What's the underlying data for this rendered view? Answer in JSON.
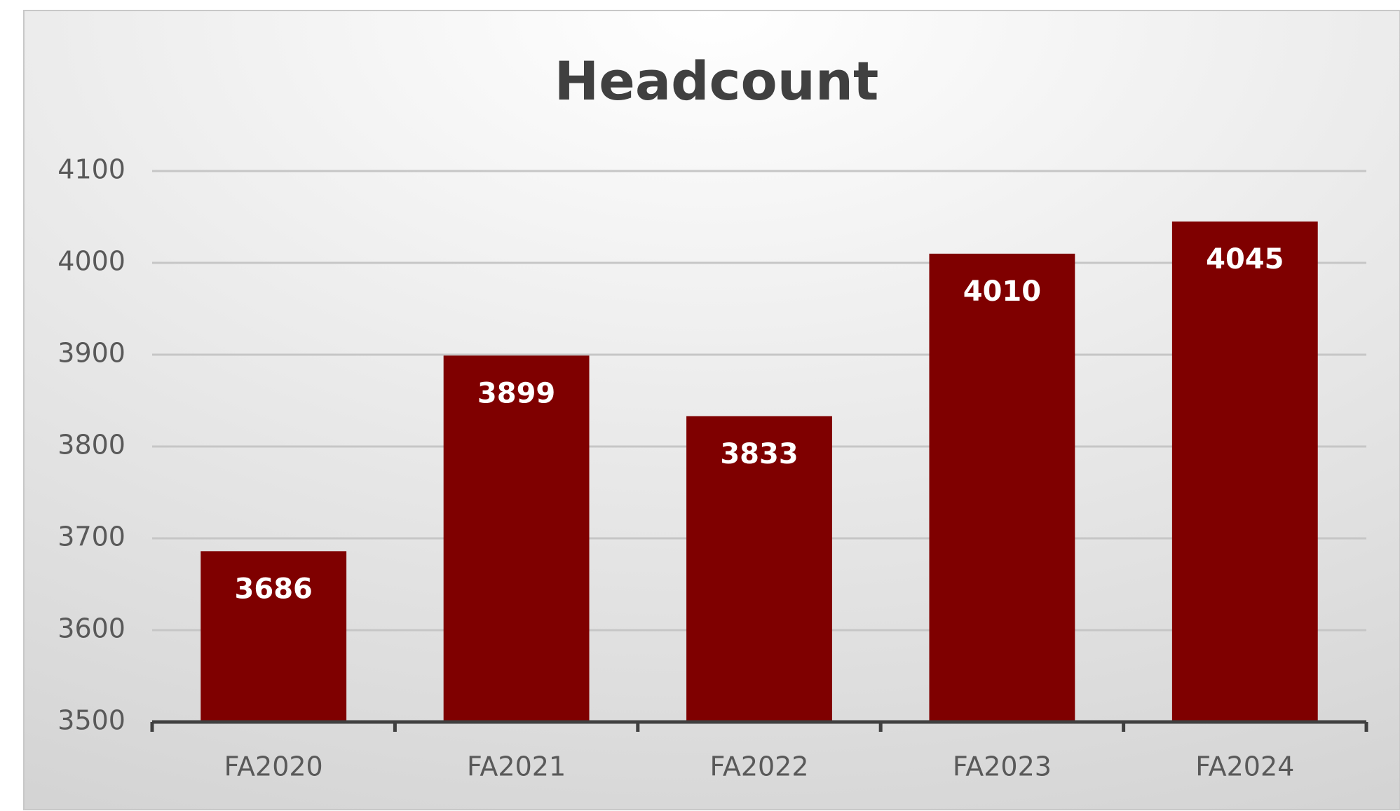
{
  "chart_data": {
    "type": "bar",
    "title": "Headcount",
    "categories": [
      "FA2020",
      "FA2021",
      "FA2022",
      "FA2023",
      "FA2024"
    ],
    "values": [
      3686,
      3899,
      3833,
      4010,
      4045
    ],
    "color": "#7f0000",
    "ylim": [
      3500,
      4100
    ],
    "yticks": [
      3500,
      3600,
      3700,
      3800,
      3900,
      4000,
      4100
    ],
    "grid": true
  }
}
